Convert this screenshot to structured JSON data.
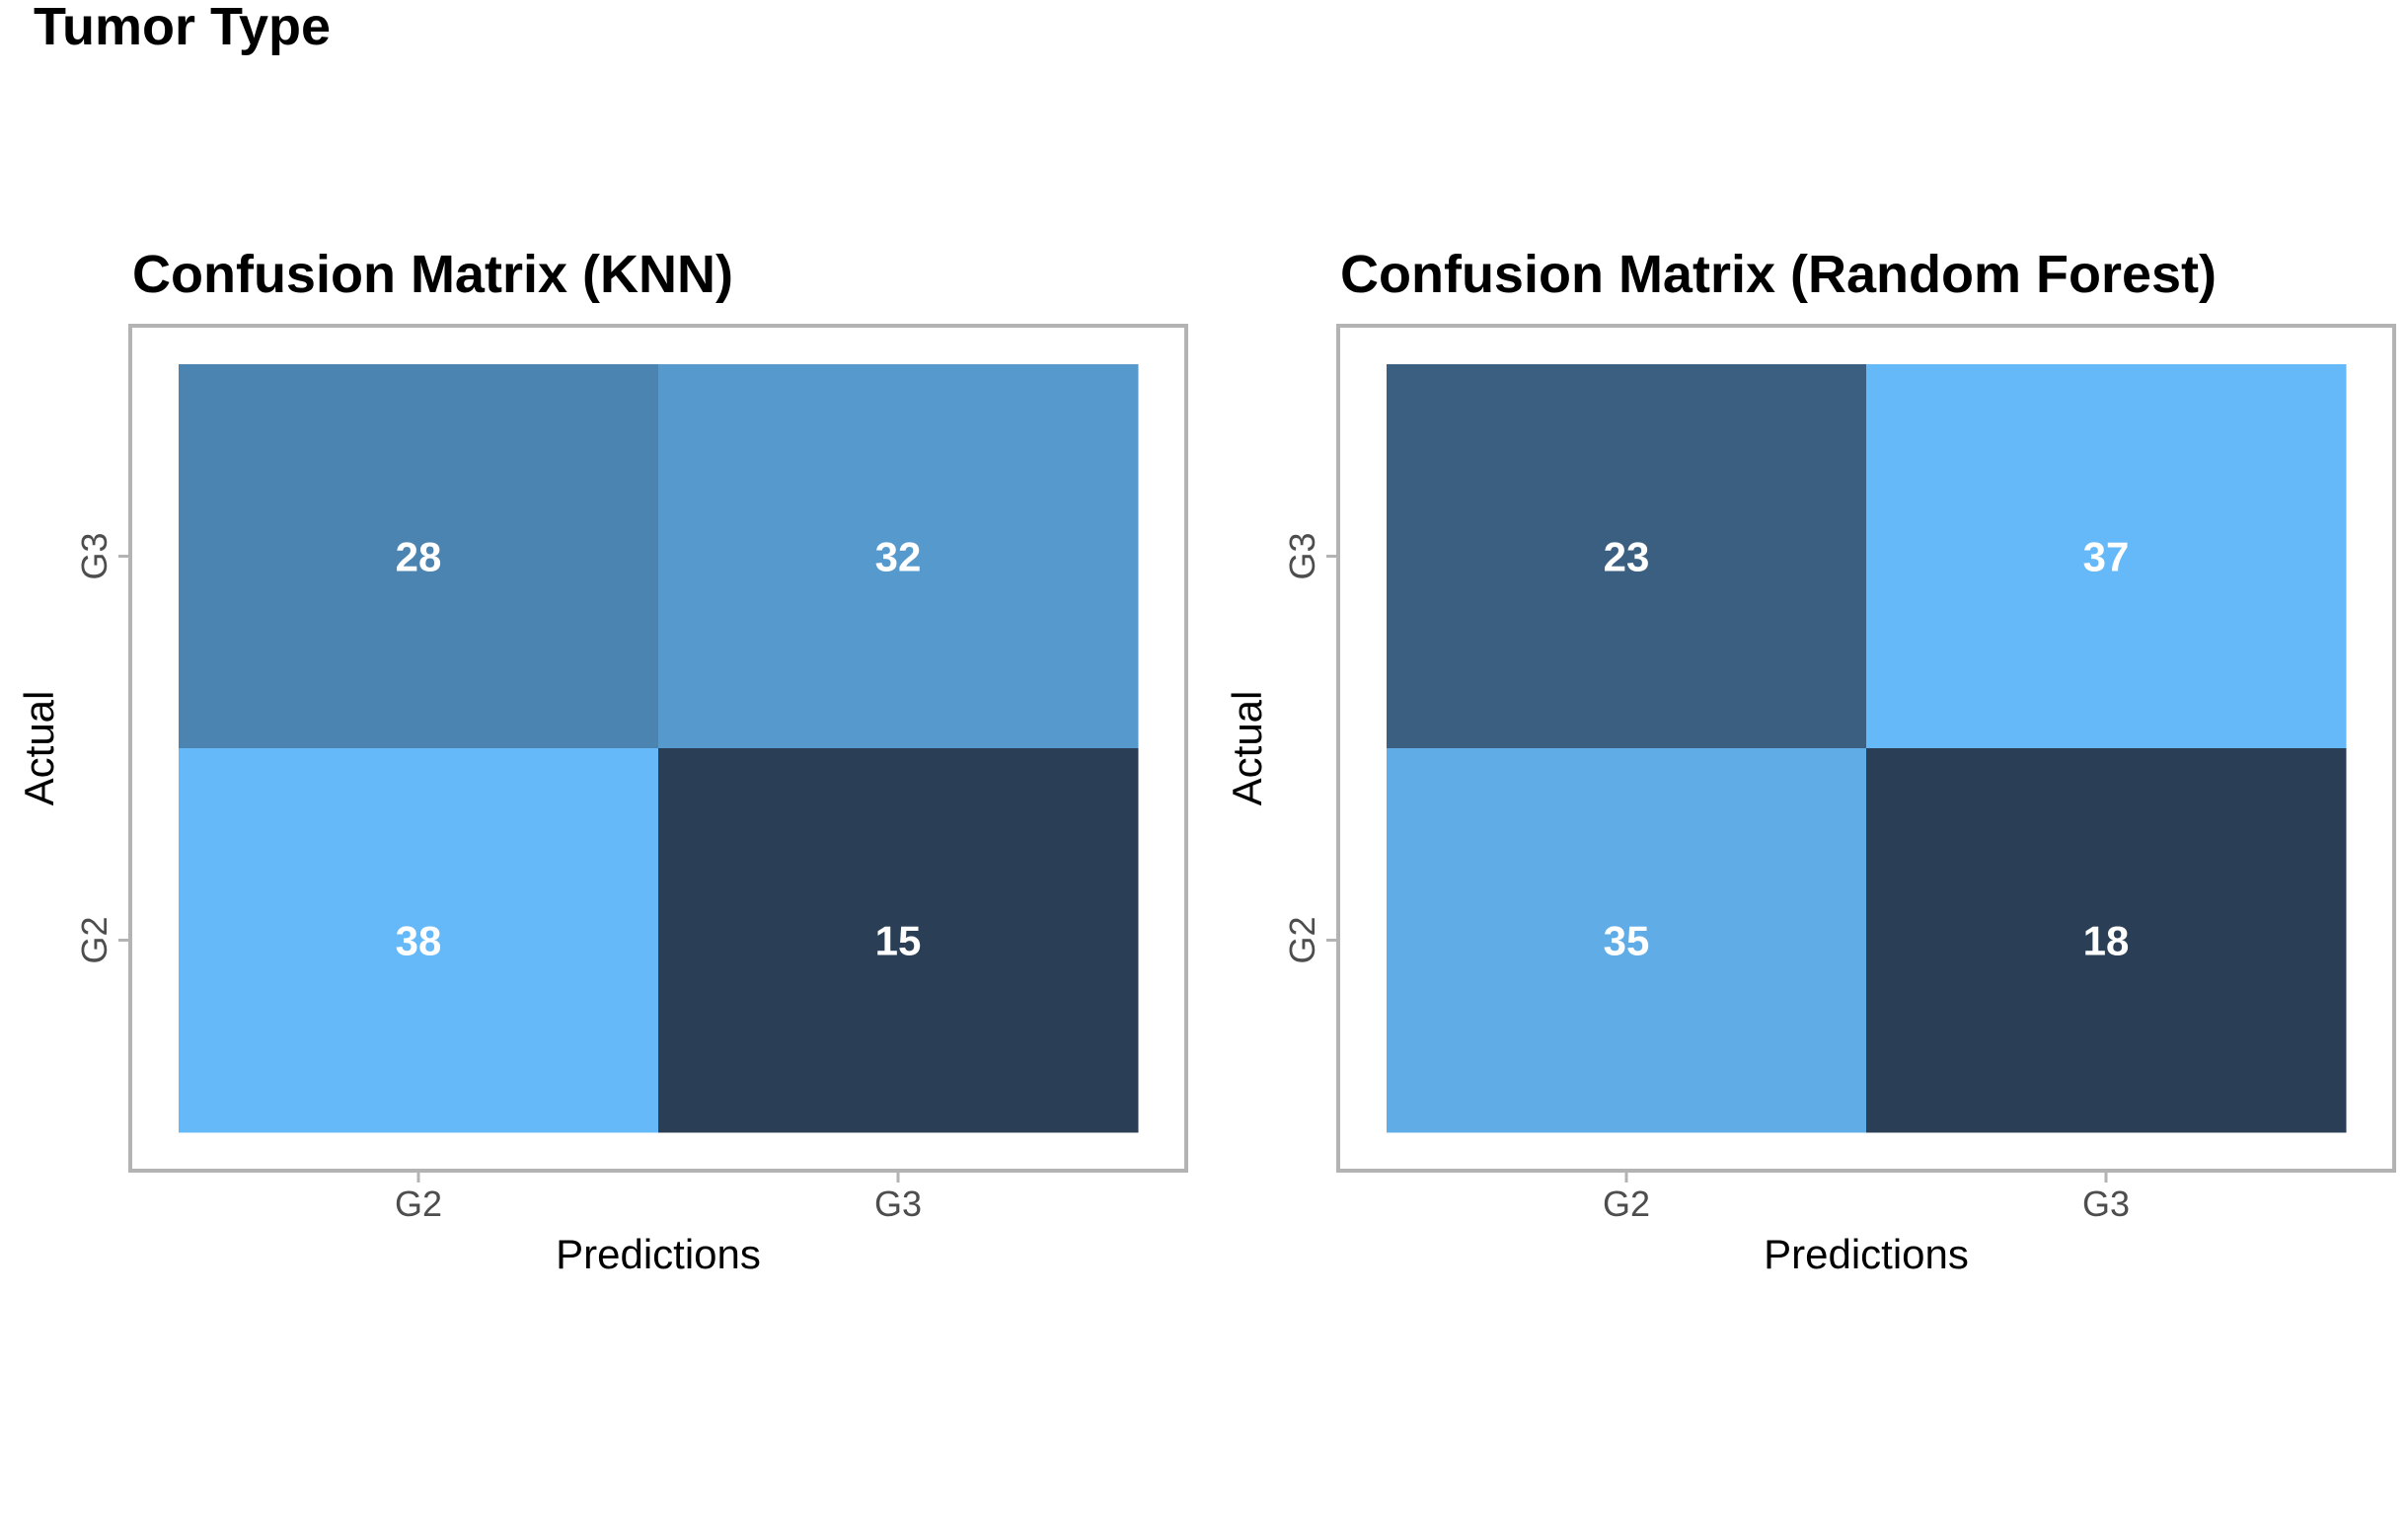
{
  "figure_title": "Tumor Type",
  "chart_data": [
    {
      "type": "heatmap",
      "title": "Confusion Matrix (KNN)",
      "xlabel": "Predictions",
      "ylabel": "Actual",
      "x_categories": [
        "G2",
        "G3"
      ],
      "y_categories": [
        "G2",
        "G3"
      ],
      "cells": [
        {
          "actual": "G3",
          "predicted": "G2",
          "value": 28
        },
        {
          "actual": "G3",
          "predicted": "G3",
          "value": 32
        },
        {
          "actual": "G2",
          "predicted": "G2",
          "value": 38
        },
        {
          "actual": "G2",
          "predicted": "G3",
          "value": 15
        }
      ],
      "color_scale": {
        "low": "#2a3f55",
        "high": "#66b9f8"
      },
      "grid": false,
      "legend": "none"
    },
    {
      "type": "heatmap",
      "title": "Confusion Matrix (Random Forest)",
      "xlabel": "Predictions",
      "ylabel": "Actual",
      "x_categories": [
        "G2",
        "G3"
      ],
      "y_categories": [
        "G2",
        "G3"
      ],
      "cells": [
        {
          "actual": "G3",
          "predicted": "G2",
          "value": 23
        },
        {
          "actual": "G3",
          "predicted": "G3",
          "value": 37
        },
        {
          "actual": "G2",
          "predicted": "G2",
          "value": 35
        },
        {
          "actual": "G2",
          "predicted": "G3",
          "value": 18
        }
      ],
      "color_scale": {
        "low": "#2a3f55",
        "high": "#66b9f8"
      },
      "grid": false,
      "legend": "none"
    }
  ]
}
